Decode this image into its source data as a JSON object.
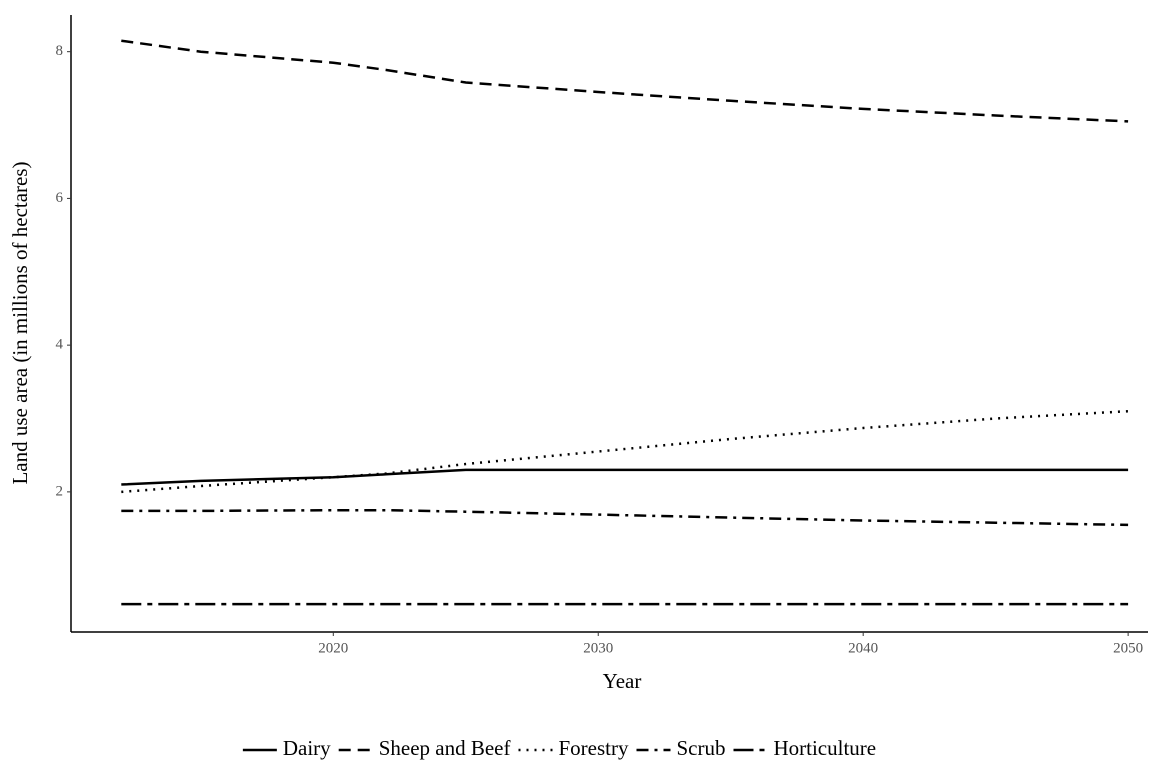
{
  "chart_data": {
    "type": "line",
    "x_label": "Year",
    "y_label": "Land use area (in millions of hectares)",
    "x": [
      2012,
      2015,
      2020,
      2022,
      2025,
      2030,
      2035,
      2040,
      2045,
      2050
    ],
    "series": [
      {
        "name": "Dairy",
        "color": "#000000",
        "linestyle": "solid",
        "values": [
          2.1,
          2.15,
          2.2,
          2.24,
          2.3,
          2.3,
          2.3,
          2.3,
          2.3,
          2.3
        ]
      },
      {
        "name": "Sheep and Beef",
        "color": "#000000",
        "linestyle": "dashed",
        "values": [
          8.15,
          8.0,
          7.85,
          7.75,
          7.58,
          7.45,
          7.33,
          7.22,
          7.13,
          7.05
        ]
      },
      {
        "name": "Forestry",
        "color": "#000000",
        "linestyle": "dotted",
        "values": [
          2.0,
          2.08,
          2.2,
          2.25,
          2.38,
          2.55,
          2.72,
          2.87,
          3.0,
          3.1
        ]
      },
      {
        "name": "Scrub",
        "color": "#000000",
        "linestyle": "dashdot",
        "values": [
          1.74,
          1.74,
          1.75,
          1.75,
          1.73,
          1.69,
          1.65,
          1.61,
          1.58,
          1.55
        ]
      },
      {
        "name": "Horticulture",
        "color": "#000000",
        "linestyle": "longdashdot",
        "values": [
          0.47,
          0.47,
          0.47,
          0.47,
          0.47,
          0.47,
          0.47,
          0.47,
          0.47,
          0.47
        ]
      }
    ],
    "xlim": [
      2010.1,
      2050.75
    ],
    "ylim": [
      0.09,
      8.5
    ],
    "xticks": [
      2020,
      2030,
      2040,
      2050
    ],
    "yticks": [
      2,
      4,
      6,
      8
    ],
    "grid": false,
    "legend": "bottom"
  }
}
